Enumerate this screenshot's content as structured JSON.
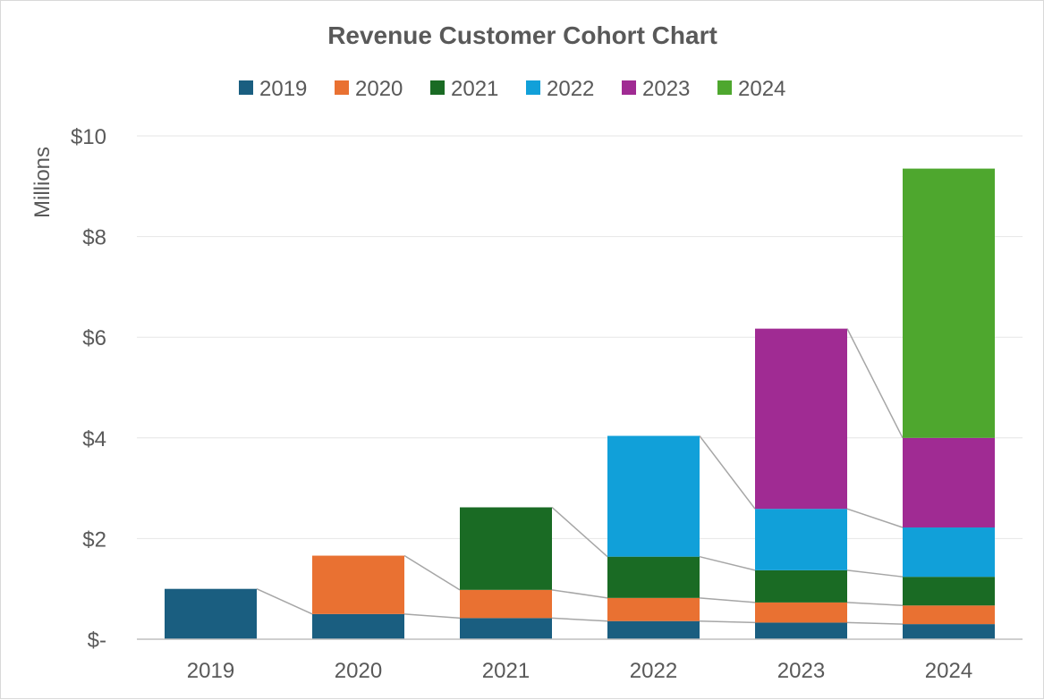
{
  "chart_data": {
    "type": "bar",
    "stacked": true,
    "title": "Revenue Customer Cohort Chart",
    "ylabel": "Millions",
    "xlabel": "",
    "ylim": [
      0,
      10
    ],
    "yticks": [
      0,
      2,
      4,
      6,
      8,
      10
    ],
    "ytick_labels": [
      "$-",
      "$2",
      "$4",
      "$6",
      "$8",
      "$10"
    ],
    "categories": [
      "2019",
      "2020",
      "2021",
      "2022",
      "2023",
      "2024"
    ],
    "legend_position": "top",
    "grid": true,
    "series_connector_lines": true,
    "series": [
      {
        "name": "2019",
        "color": "#1a5e80",
        "values": [
          1.0,
          0.5,
          0.42,
          0.36,
          0.33,
          0.3
        ]
      },
      {
        "name": "2020",
        "color": "#e97132",
        "values": [
          0,
          1.16,
          0.56,
          0.46,
          0.4,
          0.37
        ]
      },
      {
        "name": "2021",
        "color": "#1a6b24",
        "values": [
          0,
          0,
          1.64,
          0.82,
          0.64,
          0.57
        ]
      },
      {
        "name": "2022",
        "color": "#11a0d9",
        "values": [
          0,
          0,
          0,
          2.4,
          1.22,
          0.98
        ]
      },
      {
        "name": "2023",
        "color": "#a02b93",
        "values": [
          0,
          0,
          0,
          0,
          3.58,
          1.78
        ]
      },
      {
        "name": "2024",
        "color": "#4ea72e",
        "values": [
          0,
          0,
          0,
          0,
          0,
          5.35
        ]
      }
    ]
  }
}
